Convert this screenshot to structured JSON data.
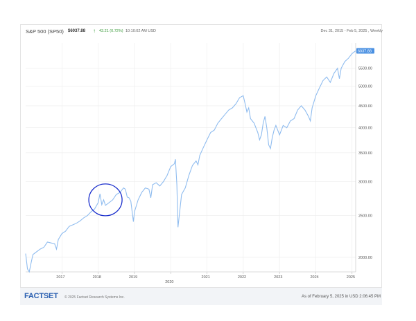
{
  "header": {
    "symbol": "S&P 500 (SP50)",
    "last_price": "$6037.88",
    "change": "43.21 (0.72%)",
    "time": "10:10:02 AM USD",
    "range": "Dec 31, 2015 - Feb 5, 2025 , Weekly",
    "arrow_icon": "up-arrow-icon"
  },
  "footer": {
    "logo": "FACTSET",
    "copyright": "© 2025 Factset Research Systems Inc.",
    "as_of": "As of February 5, 2025 in USD 2:06:45 PM"
  },
  "colors": {
    "line": "#8fbcef",
    "badge": "#4a90e2",
    "annotation": "#1a2ecc",
    "up": "#3a9a3a"
  },
  "chart_data": {
    "type": "line",
    "title": "S&P 500 (SP50)",
    "xlabel": "",
    "ylabel": "",
    "y_scale": "log",
    "ylim": [
      1850,
      6300
    ],
    "xlim": [
      2016.0,
      2025.1
    ],
    "x_ticks": [
      "2017",
      "2018",
      "2019",
      "2020",
      "2021",
      "2022",
      "2023",
      "2024",
      "2025"
    ],
    "y_ticks": [
      "2000.00",
      "2500.00",
      "3000.00",
      "3500.00",
      "4000.00",
      "4500.00",
      "5000.00",
      "5500.00"
    ],
    "last_value_label": "6037.88",
    "grid": true,
    "series": [
      {
        "x": [
          2016.0,
          2016.05,
          2016.1,
          2016.15,
          2016.2,
          2016.3,
          2016.4,
          2016.5,
          2016.6,
          2016.7,
          2016.8,
          2016.85,
          2016.9,
          2017.0,
          2017.1,
          2017.2,
          2017.3,
          2017.4,
          2017.5,
          2017.6,
          2017.7,
          2017.8,
          2017.9,
          2018.0,
          2018.05,
          2018.1,
          2018.15,
          2018.2,
          2018.3,
          2018.4,
          2018.5,
          2018.6,
          2018.7,
          2018.75,
          2018.8,
          2018.85,
          2018.9,
          2018.97,
          2019.0,
          2019.1,
          2019.2,
          2019.3,
          2019.4,
          2019.45,
          2019.5,
          2019.6,
          2019.7,
          2019.8,
          2019.9,
          2020.0,
          2020.1,
          2020.13,
          2020.17,
          2020.2,
          2020.23,
          2020.3,
          2020.4,
          2020.5,
          2020.6,
          2020.7,
          2020.75,
          2020.8,
          2020.9,
          2021.0,
          2021.1,
          2021.2,
          2021.3,
          2021.4,
          2021.5,
          2021.6,
          2021.7,
          2021.8,
          2021.9,
          2022.0,
          2022.05,
          2022.1,
          2022.15,
          2022.2,
          2022.3,
          2022.4,
          2022.45,
          2022.5,
          2022.55,
          2022.6,
          2022.65,
          2022.7,
          2022.75,
          2022.8,
          2022.85,
          2022.9,
          2023.0,
          2023.1,
          2023.2,
          2023.3,
          2023.4,
          2023.5,
          2023.6,
          2023.7,
          2023.8,
          2023.85,
          2023.9,
          2024.0,
          2024.1,
          2024.2,
          2024.3,
          2024.4,
          2024.5,
          2024.6,
          2024.65,
          2024.7,
          2024.8,
          2024.9,
          2025.0,
          2025.1
        ],
        "y": [
          2040,
          1880,
          1850,
          1940,
          2030,
          2060,
          2090,
          2110,
          2170,
          2160,
          2150,
          2090,
          2200,
          2270,
          2300,
          2360,
          2380,
          2400,
          2430,
          2470,
          2500,
          2550,
          2590,
          2680,
          2810,
          2650,
          2720,
          2640,
          2680,
          2720,
          2800,
          2830,
          2900,
          2880,
          2760,
          2750,
          2700,
          2420,
          2550,
          2720,
          2830,
          2900,
          2880,
          2750,
          2950,
          2980,
          2930,
          3000,
          3100,
          3250,
          3300,
          3380,
          2950,
          2350,
          2480,
          2800,
          2900,
          3100,
          3270,
          3350,
          3280,
          3450,
          3600,
          3750,
          3900,
          3950,
          4100,
          4200,
          4300,
          4400,
          4450,
          4550,
          4700,
          4750,
          4550,
          4350,
          4450,
          4200,
          4100,
          3900,
          3750,
          3850,
          4100,
          4250,
          4000,
          3650,
          3580,
          3800,
          3950,
          4050,
          3850,
          4050,
          4000,
          4150,
          4200,
          4400,
          4500,
          4400,
          4250,
          4150,
          4450,
          4750,
          4950,
          5150,
          5250,
          5100,
          5350,
          5500,
          5200,
          5500,
          5700,
          5800,
          5950,
          6037.88
        ]
      }
    ]
  }
}
